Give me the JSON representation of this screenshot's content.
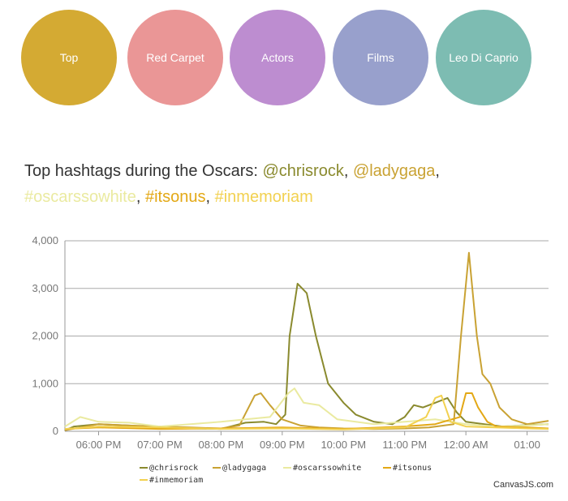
{
  "nav": {
    "items": [
      {
        "label": "Top",
        "color": "#d4aa33"
      },
      {
        "label": "Red Carpet",
        "color": "#ea9696"
      },
      {
        "label": "Actors",
        "color": "#bd8dd0"
      },
      {
        "label": "Films",
        "color": "#98a0cc"
      },
      {
        "label": "Leo Di Caprio",
        "color": "#7dbcb2"
      }
    ]
  },
  "heading": {
    "prefix": "Top hashtags during the Oscars: ",
    "sep": ", ",
    "tags": [
      {
        "text": "@chrisrock",
        "color": "#8a8a2e"
      },
      {
        "text": "@ladygaga",
        "color": "#c9a233"
      },
      {
        "text": "#oscarssowhite",
        "color": "#eaeaa0"
      },
      {
        "text": "#itsonus",
        "color": "#e3a815"
      },
      {
        "text": "#inmemoriam",
        "color": "#f2d150"
      }
    ]
  },
  "credit": "CanvasJS.com",
  "chart_data": {
    "type": "line",
    "x_ticks": [
      "06:00 PM",
      "07:00 PM",
      "08:00 PM",
      "09:00 PM",
      "10:00 PM",
      "11:00 PM",
      "12:00 AM",
      "01:00"
    ],
    "x_range_hours": [
      -0.55,
      7.35
    ],
    "ylim": [
      0,
      4000
    ],
    "y_ticks": [
      "0",
      "1,000",
      "2,000",
      "3,000",
      "4,000"
    ],
    "y_tick_values": [
      0,
      1000,
      2000,
      3000,
      4000
    ],
    "series": [
      {
        "name": "@chrisrock",
        "color": "#8a8a2e",
        "x": [
          -0.55,
          -0.4,
          0,
          0.5,
          1,
          1.5,
          2,
          2.4,
          2.7,
          2.9,
          3.05,
          3.12,
          3.25,
          3.4,
          3.55,
          3.75,
          4,
          4.2,
          4.5,
          4.8,
          5,
          5.15,
          5.3,
          5.5,
          5.7,
          5.85,
          6,
          6.3,
          6.6,
          7,
          7.35
        ],
        "y": [
          20,
          100,
          150,
          120,
          80,
          60,
          50,
          180,
          200,
          150,
          350,
          2000,
          3100,
          2900,
          2000,
          1000,
          600,
          350,
          200,
          150,
          300,
          550,
          500,
          600,
          700,
          400,
          200,
          150,
          100,
          130,
          150
        ]
      },
      {
        "name": "@ladygaga",
        "color": "#c9a233",
        "x": [
          -0.55,
          0,
          0.5,
          1,
          1.5,
          2,
          2.3,
          2.55,
          2.65,
          2.8,
          3,
          3.3,
          3.6,
          4,
          4.5,
          5,
          5.4,
          5.8,
          5.92,
          6.05,
          6.12,
          6.18,
          6.27,
          6.4,
          6.55,
          6.75,
          7,
          7.35
        ],
        "y": [
          20,
          150,
          120,
          100,
          80,
          60,
          120,
          750,
          800,
          550,
          250,
          120,
          80,
          60,
          50,
          60,
          80,
          150,
          2000,
          3750,
          2800,
          2000,
          1200,
          1000,
          500,
          250,
          150,
          220
        ]
      },
      {
        "name": "#oscarssowhite",
        "color": "#eaeaa0",
        "x": [
          -0.55,
          -0.3,
          0,
          0.5,
          1,
          1.5,
          2,
          2.4,
          2.8,
          3.1,
          3.2,
          3.35,
          3.6,
          3.9,
          4.2,
          4.5,
          5,
          5.5,
          6,
          6.5,
          7,
          7.35
        ],
        "y": [
          100,
          300,
          200,
          180,
          100,
          150,
          200,
          250,
          300,
          800,
          900,
          600,
          550,
          250,
          200,
          150,
          200,
          250,
          150,
          100,
          120,
          150
        ]
      },
      {
        "name": "#itsonus",
        "color": "#e3a815",
        "x": [
          -0.55,
          0,
          1,
          2,
          3,
          4,
          5,
          5.5,
          5.9,
          6,
          6.1,
          6.2,
          6.35,
          6.5,
          7,
          7.35
        ],
        "y": [
          50,
          80,
          50,
          60,
          80,
          50,
          100,
          150,
          300,
          800,
          800,
          500,
          200,
          100,
          80,
          60
        ]
      },
      {
        "name": "#inmemoriam",
        "color": "#f2d150",
        "x": [
          -0.55,
          0,
          1,
          2,
          3,
          4,
          5,
          5.35,
          5.5,
          5.6,
          5.75,
          6,
          7,
          7.35
        ],
        "y": [
          50,
          100,
          80,
          50,
          60,
          40,
          80,
          300,
          700,
          750,
          200,
          100,
          60,
          50
        ]
      }
    ]
  }
}
